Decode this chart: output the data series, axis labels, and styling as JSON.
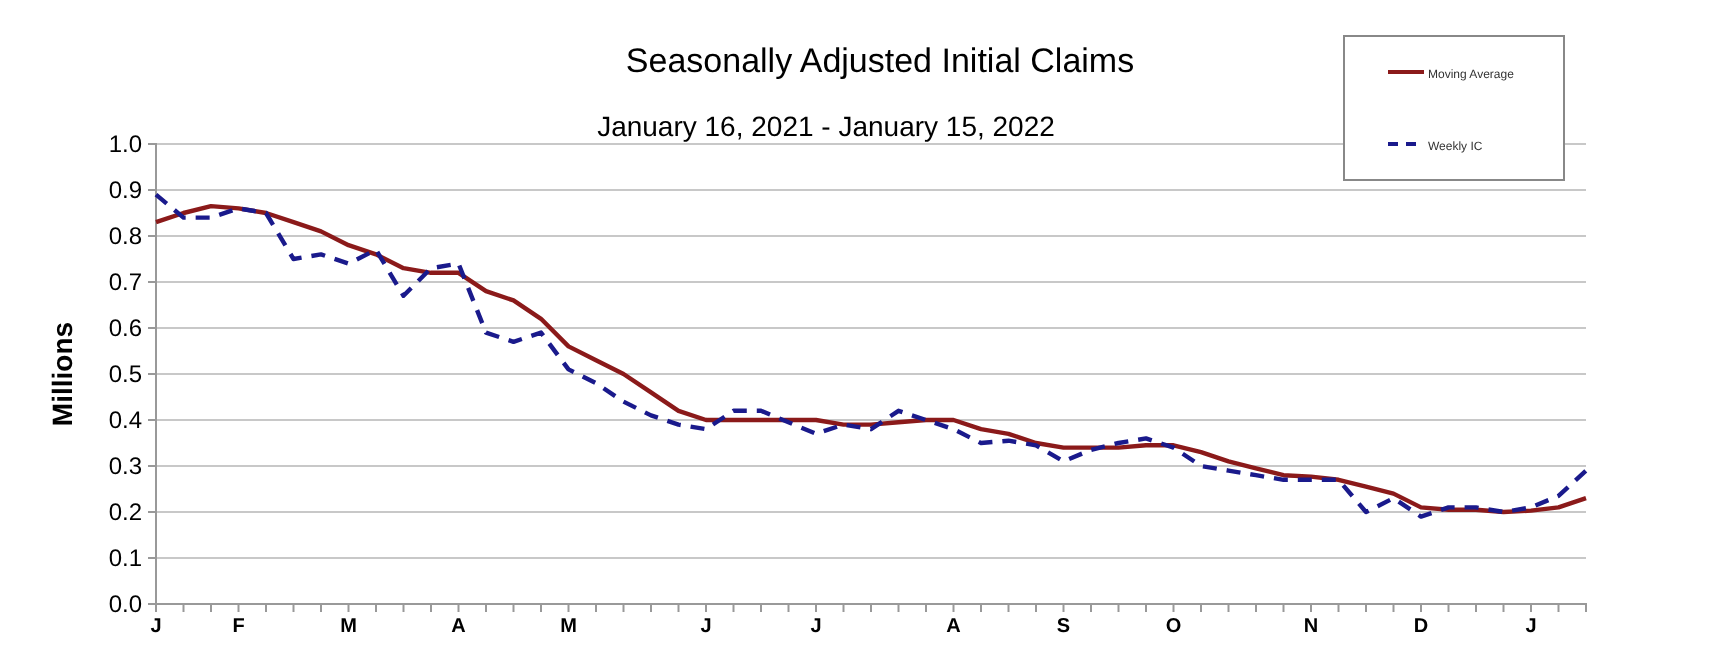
{
  "chart_data": {
    "type": "line",
    "title": "Seasonally Adjusted Initial Claims",
    "subtitle": "January 16, 2021 - January 15, 2022",
    "ylabel": "Millions",
    "categories": [
      "J",
      null,
      null,
      "F",
      null,
      null,
      null,
      "M",
      null,
      null,
      null,
      "A",
      null,
      null,
      null,
      "M",
      null,
      null,
      null,
      null,
      "J",
      null,
      null,
      null,
      "J",
      null,
      null,
      null,
      null,
      "A",
      null,
      null,
      null,
      "S",
      null,
      null,
      null,
      "O",
      null,
      null,
      null,
      null,
      "N",
      null,
      null,
      null,
      "D",
      null,
      null,
      null,
      "J",
      null,
      null
    ],
    "series": [
      {
        "name": "Moving Average",
        "color": "#8b1a1a",
        "line_style": "solid",
        "values": [
          0.83,
          0.85,
          0.865,
          0.86,
          0.85,
          0.83,
          0.81,
          0.78,
          0.76,
          0.73,
          0.72,
          0.72,
          0.68,
          0.66,
          0.62,
          0.56,
          0.53,
          0.5,
          0.46,
          0.42,
          0.4,
          0.4,
          0.4,
          0.4,
          0.4,
          0.39,
          0.39,
          0.395,
          0.4,
          0.4,
          0.38,
          0.37,
          0.35,
          0.34,
          0.34,
          0.34,
          0.345,
          0.345,
          0.33,
          0.31,
          0.295,
          0.28,
          0.277,
          0.27,
          0.255,
          0.24,
          0.21,
          0.205,
          0.205,
          0.2,
          0.203,
          0.21,
          0.23
        ]
      },
      {
        "name": "Weekly IC",
        "color": "#1a1a8c",
        "line_style": "dashed",
        "values": [
          0.89,
          0.84,
          0.84,
          0.86,
          0.85,
          0.75,
          0.76,
          0.74,
          0.77,
          0.67,
          0.73,
          0.74,
          0.59,
          0.57,
          0.59,
          0.51,
          0.48,
          0.44,
          0.41,
          0.39,
          0.38,
          0.42,
          0.42,
          0.395,
          0.37,
          0.39,
          0.38,
          0.42,
          0.4,
          0.38,
          0.35,
          0.355,
          0.345,
          0.31,
          0.335,
          0.35,
          0.36,
          0.34,
          0.3,
          0.29,
          0.28,
          0.27,
          0.27,
          0.27,
          0.2,
          0.23,
          0.19,
          0.21,
          0.21,
          0.2,
          0.21,
          0.235,
          0.29
        ]
      }
    ],
    "ylim": [
      0,
      1
    ],
    "yticks": [
      {
        "value": 0,
        "label": "0.0"
      },
      {
        "value": 0.1,
        "label": "0.1"
      },
      {
        "value": 0.2,
        "label": "0.2"
      },
      {
        "value": 0.3,
        "label": "0.3"
      },
      {
        "value": 0.4,
        "label": "0.4"
      },
      {
        "value": 0.5,
        "label": "0.5"
      },
      {
        "value": 0.6,
        "label": "0.6"
      },
      {
        "value": 0.7,
        "label": "0.7"
      },
      {
        "value": 0.8,
        "label": "0.8"
      },
      {
        "value": 0.9,
        "label": "0.9"
      },
      {
        "value": 1,
        "label": "1.0"
      }
    ],
    "grid": "y",
    "legend": "top right"
  }
}
